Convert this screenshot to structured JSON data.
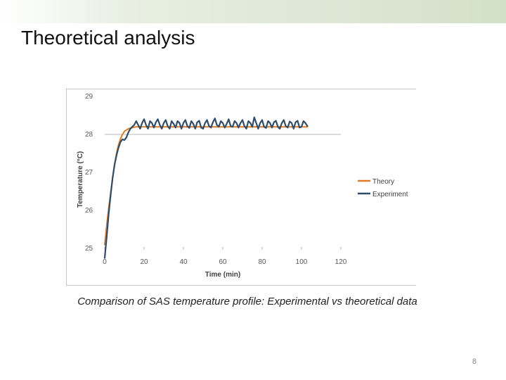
{
  "slide": {
    "title": "Theoretical analysis",
    "caption": "Comparison of SAS temperature profile: Experimental vs theoretical data",
    "page_number": "8"
  },
  "colors": {
    "theory": "#e07b26",
    "experiment": "#2f4d6b",
    "gridline": "#b7b7b7",
    "tick": "#595959"
  },
  "chart_data": {
    "type": "line",
    "title": "",
    "xlabel": "Time (min)",
    "ylabel": "Temperature (°C)",
    "xlim": [
      0,
      120
    ],
    "ylim": [
      25,
      29
    ],
    "x_ticks": [
      0,
      20,
      40,
      60,
      80,
      100,
      120
    ],
    "y_ticks": [
      25,
      26,
      27,
      28,
      29
    ],
    "legend_position": "right",
    "series": [
      {
        "name": "Theory",
        "color": "#e07b26",
        "x": [
          0,
          1,
          2,
          3,
          4,
          5,
          6,
          7,
          8,
          9,
          10,
          12,
          14,
          16,
          18,
          20,
          30,
          40,
          50,
          60,
          70,
          80,
          90,
          100,
          103
        ],
        "y": [
          25.1,
          25.6,
          26.05,
          26.45,
          26.85,
          27.2,
          27.5,
          27.72,
          27.88,
          28.0,
          28.08,
          28.15,
          28.18,
          28.2,
          28.2,
          28.2,
          28.2,
          28.2,
          28.2,
          28.2,
          28.2,
          28.2,
          28.2,
          28.2,
          28.2
        ]
      },
      {
        "name": "Experiment",
        "color": "#2f4d6b",
        "x": [
          0,
          1,
          2,
          3,
          4,
          5,
          6,
          7,
          8,
          9,
          10,
          11,
          12,
          13,
          14,
          15,
          16,
          17,
          18,
          19,
          20,
          21,
          22,
          23,
          24,
          25,
          26,
          27,
          28,
          29,
          30,
          31,
          32,
          33,
          34,
          35,
          36,
          37,
          38,
          39,
          40,
          41,
          42,
          43,
          44,
          45,
          46,
          47,
          48,
          49,
          50,
          51,
          52,
          53,
          54,
          55,
          56,
          57,
          58,
          59,
          60,
          61,
          62,
          63,
          64,
          65,
          66,
          67,
          68,
          69,
          70,
          71,
          72,
          73,
          74,
          75,
          76,
          77,
          78,
          79,
          80,
          81,
          82,
          83,
          84,
          85,
          86,
          87,
          88,
          89,
          90,
          91,
          92,
          93,
          94,
          95,
          96,
          97,
          98,
          99,
          100,
          101,
          102,
          103
        ],
        "y": [
          24.75,
          25.3,
          25.9,
          26.4,
          26.85,
          27.2,
          27.45,
          27.65,
          27.8,
          27.87,
          27.85,
          27.92,
          28.05,
          28.15,
          28.2,
          28.25,
          28.35,
          28.25,
          28.15,
          28.3,
          28.4,
          28.25,
          28.15,
          28.35,
          28.3,
          28.18,
          28.32,
          28.4,
          28.25,
          28.15,
          28.3,
          28.38,
          28.22,
          28.15,
          28.35,
          28.28,
          28.18,
          28.35,
          28.3,
          28.15,
          28.3,
          28.38,
          28.22,
          28.17,
          28.35,
          28.28,
          28.15,
          28.32,
          28.36,
          28.18,
          28.15,
          28.3,
          28.38,
          28.22,
          28.18,
          28.32,
          28.42,
          28.25,
          28.2,
          28.35,
          28.3,
          28.18,
          28.28,
          28.4,
          28.22,
          28.2,
          28.35,
          28.3,
          28.18,
          28.3,
          28.38,
          28.22,
          28.15,
          28.35,
          28.3,
          28.2,
          28.45,
          28.3,
          28.15,
          28.3,
          28.38,
          28.2,
          28.17,
          28.35,
          28.3,
          28.18,
          28.32,
          28.36,
          28.2,
          28.15,
          28.3,
          28.38,
          28.22,
          28.18,
          28.34,
          28.3,
          28.15,
          28.32,
          28.36,
          28.18,
          28.2,
          28.35,
          28.3,
          28.22
        ]
      }
    ]
  }
}
